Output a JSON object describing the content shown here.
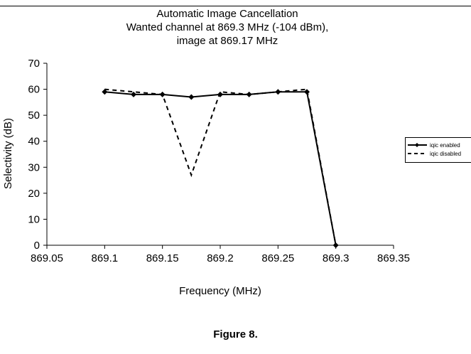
{
  "chart_data": {
    "type": "line",
    "title_lines": [
      "Automatic Image Cancellation",
      "Wanted channel at 869.3 MHz (-104 dBm),",
      "image at 869.17 MHz"
    ],
    "xlabel": "Frequency (MHz)",
    "ylabel": "Selectivity (dB)",
    "xlim": [
      869.05,
      869.35
    ],
    "ylim": [
      0,
      70
    ],
    "x_ticks": [
      "869.05",
      "869.1",
      "869.15",
      "869.2",
      "869.25",
      "869.3",
      "869.35"
    ],
    "y_ticks": [
      "0",
      "10",
      "20",
      "30",
      "40",
      "50",
      "60",
      "70"
    ],
    "grid": false,
    "legend_position": "right",
    "series": [
      {
        "name": "iqic enabled",
        "style": "solid",
        "marker": "diamond",
        "color": "#000000",
        "x": [
          869.1,
          869.125,
          869.15,
          869.175,
          869.2,
          869.225,
          869.25,
          869.275,
          869.3
        ],
        "y": [
          59,
          58,
          58,
          57,
          58,
          58,
          59,
          59,
          0
        ]
      },
      {
        "name": "iqic disabled",
        "style": "dashed",
        "marker": "none",
        "color": "#000000",
        "x": [
          869.1,
          869.125,
          869.15,
          869.175,
          869.2,
          869.225,
          869.25,
          869.275,
          869.3
        ],
        "y": [
          60,
          59,
          58,
          27,
          59,
          58,
          59,
          60,
          0
        ]
      }
    ]
  },
  "caption": "Figure 8."
}
